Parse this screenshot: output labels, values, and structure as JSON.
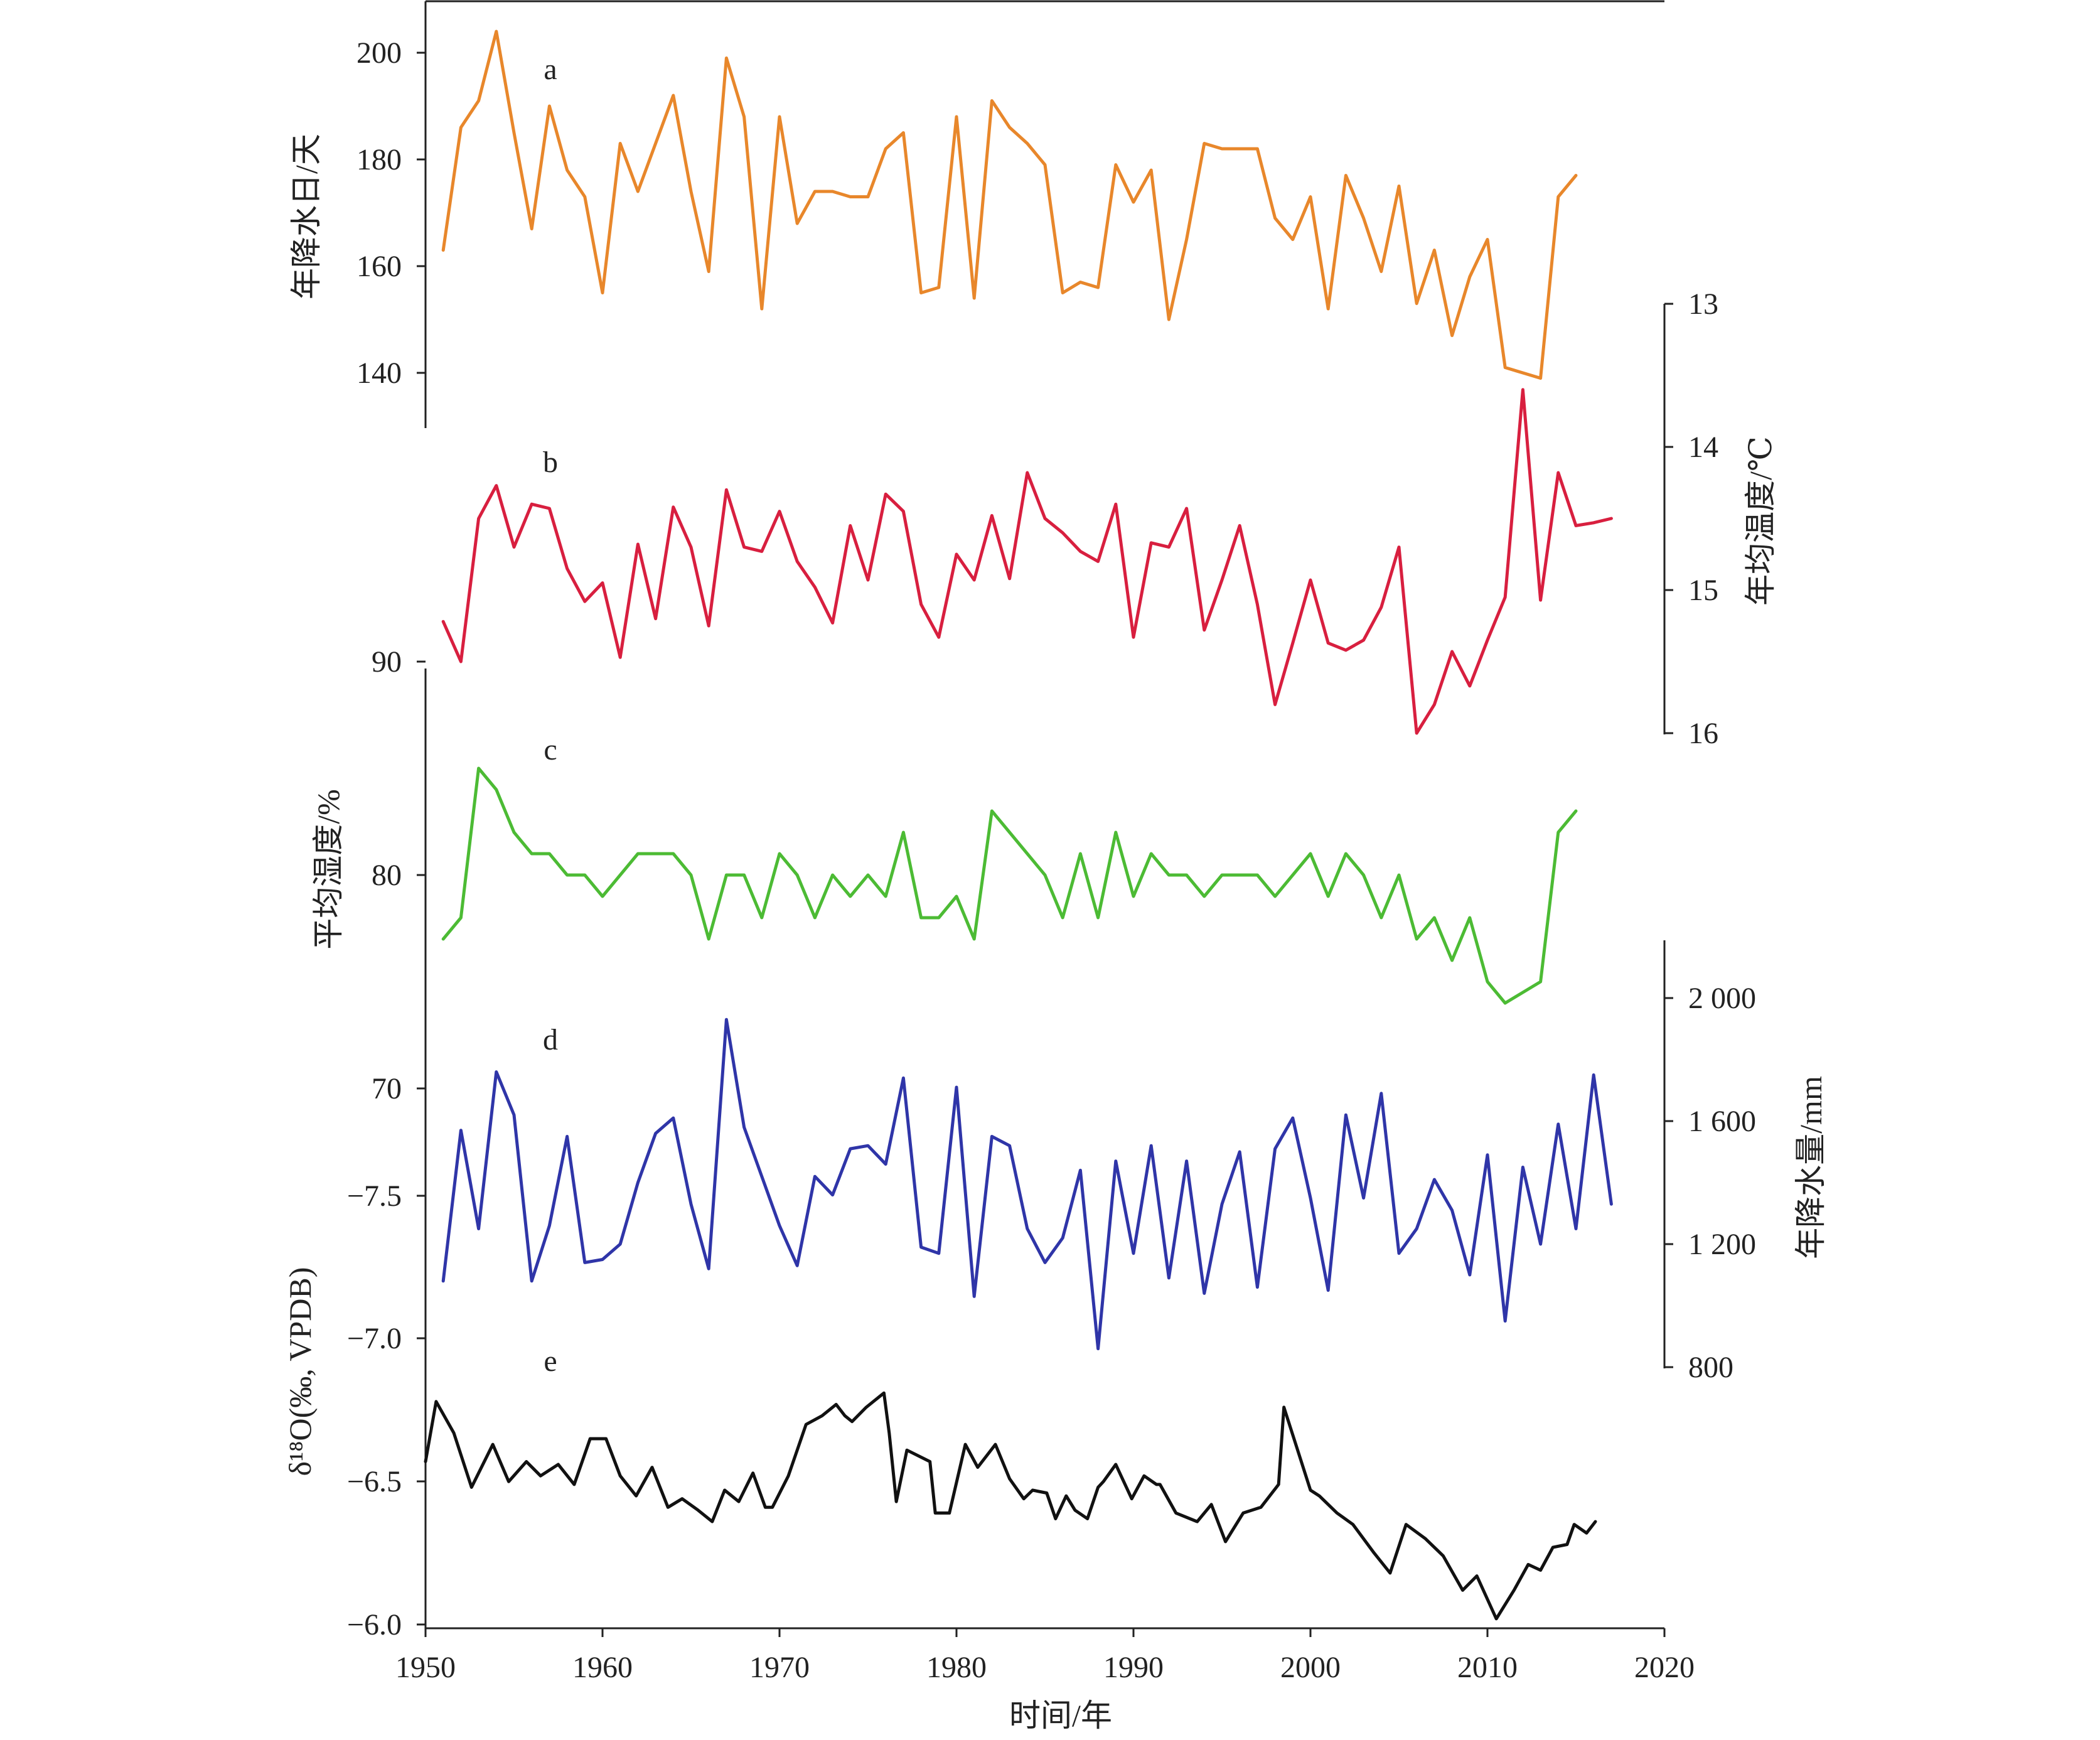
{
  "figure": {
    "xlabel": "时间/年",
    "xticks": [
      "1950",
      "1960",
      "1970",
      "1980",
      "1990",
      "2000",
      "2010",
      "2020"
    ],
    "panel_letters": [
      "a",
      "b",
      "c",
      "d",
      "e"
    ]
  },
  "axes": {
    "a_label": "年降水日/天",
    "a_ticks": [
      "200",
      "180",
      "160",
      "140"
    ],
    "b_label": "年均温度/℃",
    "b_ticks": [
      "13",
      "14",
      "15",
      "16"
    ],
    "c_label": "平均湿度/%",
    "c_ticks": [
      "90",
      "80",
      "70"
    ],
    "d_label": "年降水量/mm",
    "d_ticks": [
      "2 000",
      "1 600",
      "1 200",
      "800"
    ],
    "e_label": "δ¹⁸O(‰, VPDB)",
    "e_ticks": [
      "−7.5",
      "−7.0",
      "−6.5",
      "−6.0"
    ]
  },
  "colors": {
    "a": "#e8872b",
    "b": "#d81f3f",
    "c": "#4cbb34",
    "d": "#2f35a8",
    "e": "#111111",
    "axis": "#222222"
  },
  "chart_data": [
    {
      "type": "line",
      "panel": "a",
      "ylabel": "年降水日/天",
      "ylim": [
        132,
        210
      ],
      "x": [
        1951,
        1952,
        1953,
        1954,
        1955,
        1956,
        1957,
        1958,
        1959,
        1960,
        1961,
        1962,
        1963,
        1964,
        1965,
        1966,
        1967,
        1968,
        1969,
        1970,
        1971,
        1972,
        1973,
        1974,
        1975,
        1976,
        1977,
        1978,
        1979,
        1980,
        1981,
        1982,
        1983,
        1984,
        1985,
        1986,
        1987,
        1988,
        1989,
        1990,
        1991,
        1992,
        1993,
        1994,
        1995,
        1996,
        1997,
        1998,
        1999,
        2000,
        2001,
        2002,
        2003,
        2004,
        2005,
        2006,
        2007,
        2008,
        2009,
        2010,
        2011,
        2012,
        2013,
        2014,
        2015
      ],
      "values": [
        163,
        186,
        191,
        204,
        185,
        167,
        190,
        178,
        173,
        155,
        183,
        174,
        183,
        192,
        174,
        159,
        199,
        188,
        152,
        188,
        168,
        174,
        174,
        173,
        173,
        182,
        185,
        155,
        156,
        188,
        154,
        191,
        186,
        183,
        179,
        155,
        157,
        156,
        179,
        172,
        178,
        150,
        165,
        183,
        182,
        182,
        182,
        169,
        165,
        173,
        152,
        177,
        169,
        159,
        175,
        153,
        163,
        147,
        158,
        165,
        141,
        140,
        139,
        173,
        177
      ]
    },
    {
      "type": "line",
      "panel": "b",
      "ylabel": "年均温度/℃",
      "ylim": [
        13,
        16
      ],
      "inverted": true,
      "x": [
        1951,
        1952,
        1953,
        1954,
        1955,
        1956,
        1957,
        1958,
        1959,
        1960,
        1961,
        1962,
        1963,
        1964,
        1965,
        1966,
        1967,
        1968,
        1969,
        1970,
        1971,
        1972,
        1973,
        1974,
        1975,
        1976,
        1977,
        1978,
        1979,
        1980,
        1981,
        1982,
        1983,
        1984,
        1985,
        1986,
        1987,
        1988,
        1989,
        1990,
        1991,
        1992,
        1993,
        1994,
        1995,
        1996,
        1997,
        1998,
        1999,
        2000,
        2001,
        2002,
        2003,
        2004,
        2005,
        2006,
        2007,
        2008,
        2009,
        2010,
        2011,
        2012,
        2013,
        2014,
        2015,
        2016,
        2017
      ],
      "values": [
        15.22,
        15.5,
        14.5,
        14.27,
        14.7,
        14.4,
        14.43,
        14.85,
        15.08,
        14.95,
        15.47,
        14.68,
        15.2,
        14.42,
        14.7,
        15.25,
        14.3,
        14.7,
        14.73,
        14.45,
        14.8,
        14.98,
        15.23,
        14.55,
        14.93,
        14.33,
        14.45,
        15.1,
        15.33,
        14.75,
        14.93,
        14.48,
        14.92,
        14.18,
        14.5,
        14.6,
        14.73,
        14.8,
        14.4,
        15.33,
        14.67,
        14.7,
        14.43,
        15.28,
        14.93,
        14.55,
        15.1,
        15.8,
        15.37,
        14.93,
        15.37,
        15.42,
        15.35,
        15.12,
        14.7,
        16.0,
        15.8,
        15.43,
        15.67,
        15.35,
        15.05,
        13.6,
        15.07,
        14.18,
        14.55,
        14.53,
        14.5
      ]
    },
    {
      "type": "line",
      "panel": "c",
      "ylabel": "平均湿度/%",
      "ylim": [
        67,
        94
      ],
      "x": [
        1951,
        1952,
        1953,
        1954,
        1955,
        1956,
        1957,
        1958,
        1959,
        1960,
        1961,
        1962,
        1963,
        1964,
        1965,
        1966,
        1967,
        1968,
        1969,
        1970,
        1971,
        1972,
        1973,
        1974,
        1975,
        1976,
        1977,
        1978,
        1979,
        1980,
        1981,
        1982,
        1983,
        1984,
        1985,
        1986,
        1987,
        1988,
        1989,
        1990,
        1991,
        1992,
        1993,
        1994,
        1995,
        1996,
        1997,
        1998,
        1999,
        2000,
        2001,
        2002,
        2003,
        2004,
        2005,
        2006,
        2007,
        2008,
        2009,
        2010,
        2011,
        2012,
        2013,
        2014,
        2015
      ],
      "values": [
        77,
        78,
        85,
        84,
        82,
        81,
        81,
        80,
        80,
        79,
        80,
        81,
        81,
        81,
        80,
        77,
        80,
        80,
        78,
        81,
        80,
        78,
        80,
        79,
        80,
        79,
        82,
        78,
        78,
        79,
        77,
        83,
        82,
        81,
        80,
        78,
        81,
        78,
        82,
        79,
        81,
        80,
        80,
        79,
        80,
        80,
        80,
        79,
        80,
        81,
        79,
        81,
        80,
        78,
        80,
        77,
        78,
        76,
        78,
        75,
        74,
        74.5,
        75,
        82,
        83
      ]
    },
    {
      "type": "line",
      "panel": "d",
      "ylabel": "年降水量/mm",
      "ylim": [
        800,
        2200
      ],
      "x": [
        1951,
        1952,
        1953,
        1954,
        1955,
        1956,
        1957,
        1958,
        1959,
        1960,
        1961,
        1962,
        1963,
        1964,
        1965,
        1966,
        1967,
        1968,
        1969,
        1970,
        1971,
        1972,
        1973,
        1974,
        1975,
        1976,
        1977,
        1978,
        1979,
        1980,
        1981,
        1982,
        1983,
        1984,
        1985,
        1986,
        1987,
        1988,
        1989,
        1990,
        1991,
        1992,
        1993,
        1994,
        1995,
        1996,
        1997,
        1998,
        1999,
        2000,
        2001,
        2002,
        2003,
        2004,
        2005,
        2006,
        2007,
        2008,
        2009,
        2010,
        2011,
        2012,
        2013,
        2014,
        2015,
        2016,
        2017
      ],
      "values": [
        1080,
        1570,
        1250,
        1760,
        1620,
        1080,
        1260,
        1550,
        1140,
        1150,
        1200,
        1400,
        1560,
        1610,
        1330,
        1120,
        1930,
        1580,
        1420,
        1260,
        1130,
        1420,
        1360,
        1510,
        1520,
        1460,
        1740,
        1190,
        1170,
        1710,
        1030,
        1550,
        1520,
        1250,
        1140,
        1220,
        1440,
        860,
        1470,
        1170,
        1520,
        1090,
        1470,
        1040,
        1330,
        1500,
        1060,
        1510,
        1610,
        1350,
        1050,
        1620,
        1350,
        1690,
        1170,
        1250,
        1410,
        1310,
        1100,
        1490,
        950,
        1450,
        1200,
        1590,
        1250,
        1750,
        1330
      ]
    },
    {
      "type": "line",
      "panel": "e",
      "ylabel": "δ¹⁸O(‰, VPDB)",
      "ylim": [
        -7.5,
        -6.0
      ],
      "inverted": true,
      "x": [
        1950.0,
        1950.6,
        1951.6,
        1952.6,
        1953.8,
        1954.7,
        1955.7,
        1956.5,
        1957.5,
        1958.4,
        1959.3,
        1960.2,
        1961.0,
        1961.9,
        1962.8,
        1963.7,
        1964.5,
        1965.4,
        1966.2,
        1966.9,
        1967.7,
        1968.5,
        1969.2,
        1969.6,
        1970.5,
        1971.5,
        1972.4,
        1973.2,
        1973.7,
        1974.1,
        1974.9,
        1975.9,
        1976.2,
        1976.6,
        1977.2,
        1978.5,
        1978.8,
        1979.6,
        1980.5,
        1981.2,
        1982.2,
        1983.0,
        1983.8,
        1984.3,
        1985.1,
        1985.6,
        1986.2,
        1986.7,
        1987.4,
        1988.0,
        1988.3,
        1989.0,
        1989.9,
        1990.6,
        1991.3,
        1991.5,
        1992.4,
        1993.6,
        1994.4,
        1995.2,
        1996.2,
        1997.2,
        1998.2,
        1998.5,
        2000.0,
        2000.5,
        2001.5,
        2002.4,
        2003.6,
        2004.5,
        2005.4,
        2006.5,
        2007.5,
        2008.6,
        2009.4,
        2010.5,
        2011.5,
        2012.3,
        2013.0,
        2013.7,
        2014.5,
        2014.9,
        2015.6,
        2016.1
      ],
      "values": [
        -6.57,
        -6.78,
        -6.67,
        -6.48,
        -6.63,
        -6.5,
        -6.57,
        -6.52,
        -6.56,
        -6.49,
        -6.65,
        -6.65,
        -6.52,
        -6.45,
        -6.55,
        -6.41,
        -6.44,
        -6.4,
        -6.36,
        -6.47,
        -6.43,
        -6.53,
        -6.41,
        -6.41,
        -6.52,
        -6.7,
        -6.73,
        -6.77,
        -6.73,
        -6.71,
        -6.76,
        -6.81,
        -6.67,
        -6.43,
        -6.61,
        -6.57,
        -6.39,
        -6.39,
        -6.63,
        -6.55,
        -6.63,
        -6.51,
        -6.44,
        -6.47,
        -6.46,
        -6.37,
        -6.45,
        -6.4,
        -6.37,
        -6.48,
        -6.5,
        -6.56,
        -6.44,
        -6.52,
        -6.49,
        -6.49,
        -6.39,
        -6.36,
        -6.42,
        -6.29,
        -6.39,
        -6.41,
        -6.49,
        -6.76,
        -6.47,
        -6.45,
        -6.39,
        -6.35,
        -6.25,
        -6.18,
        -6.35,
        -6.3,
        -6.24,
        -6.12,
        -6.17,
        -6.02,
        -6.12,
        -6.21,
        -6.19,
        -6.27,
        -6.28,
        -6.35,
        -6.32,
        -6.36
      ]
    }
  ]
}
